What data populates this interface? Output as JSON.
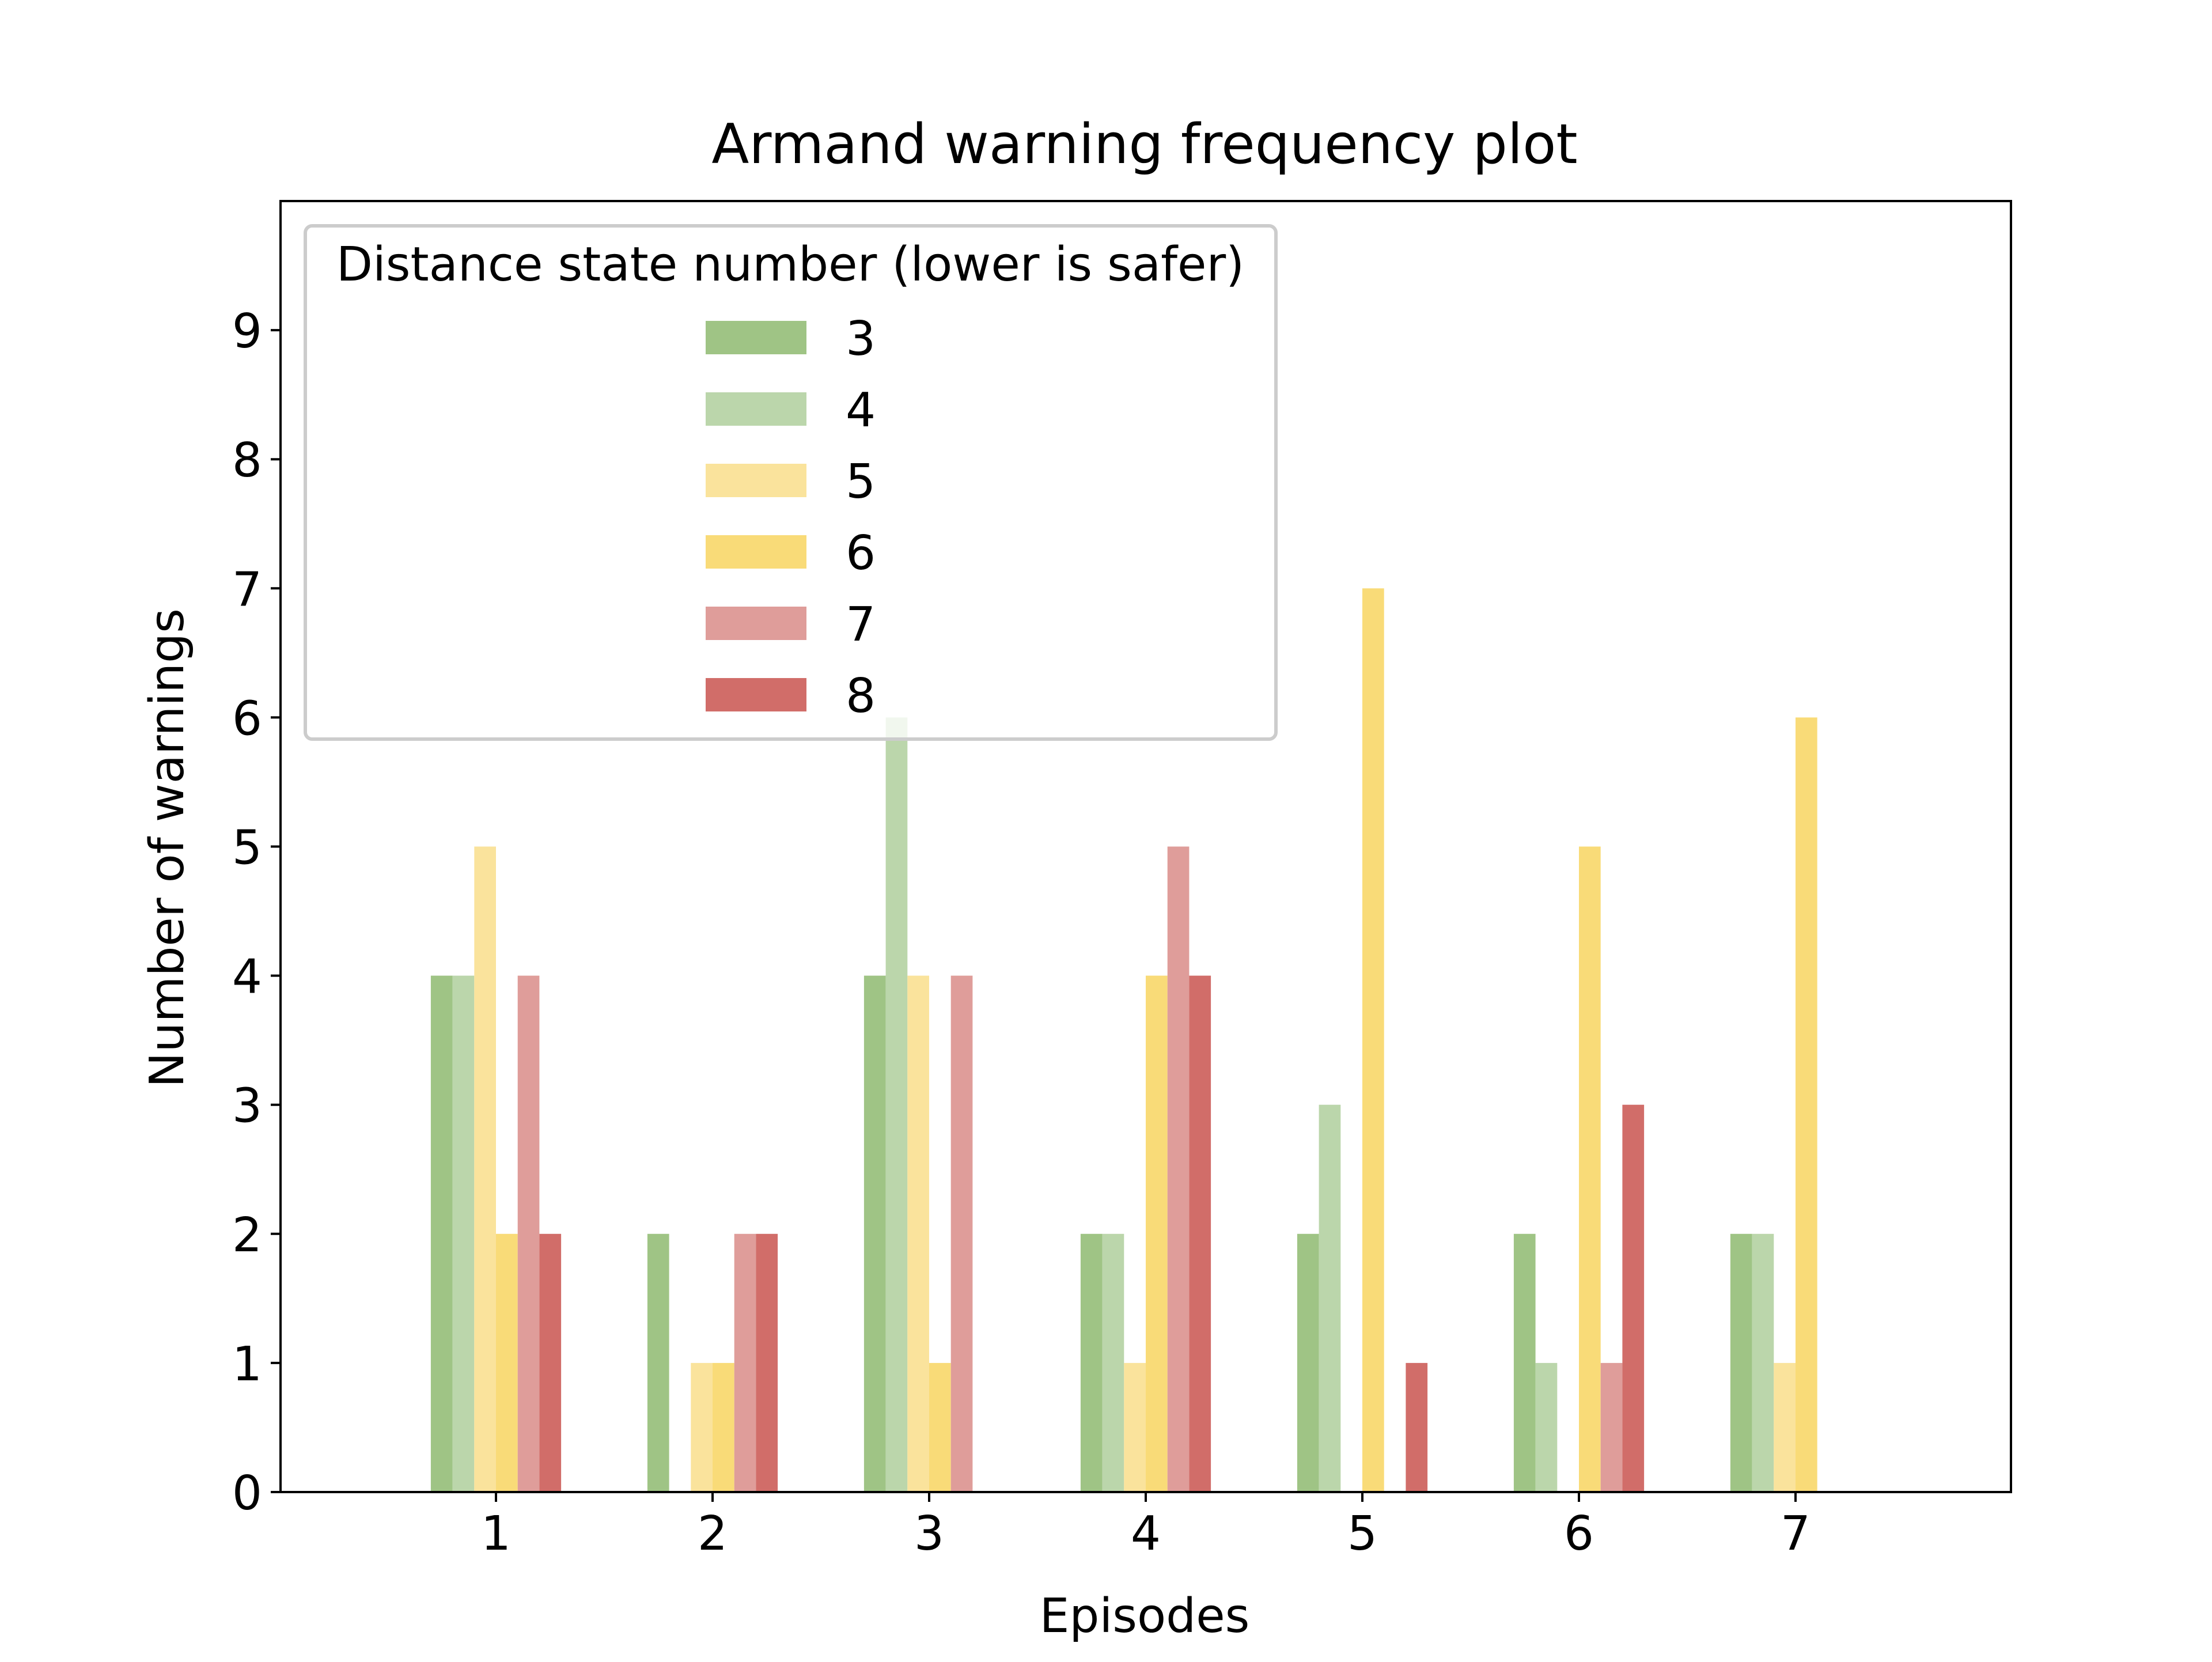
{
  "chart_data": {
    "type": "bar",
    "title": "Armand warning frequency plot",
    "xlabel": "Episodes",
    "ylabel": "Number of warnings",
    "categories": [
      "1",
      "2",
      "3",
      "4",
      "5",
      "6",
      "7"
    ],
    "ylim": [
      0,
      10
    ],
    "yticks": [
      "0",
      "1",
      "2",
      "3",
      "4",
      "5",
      "6",
      "7",
      "8",
      "9"
    ],
    "grid": false,
    "legend": {
      "title": "Distance state number (lower is safer)",
      "placement": "top-left"
    },
    "series": [
      {
        "name": "3",
        "color": "#9fc485",
        "values": [
          4,
          2,
          4,
          2,
          2,
          2,
          2
        ]
      },
      {
        "name": "4",
        "color": "#bbd6ab",
        "values": [
          4,
          0,
          6,
          2,
          3,
          1,
          2
        ]
      },
      {
        "name": "5",
        "color": "#fae39c",
        "values": [
          5,
          1,
          4,
          1,
          0,
          0,
          1
        ]
      },
      {
        "name": "6",
        "color": "#f9db78",
        "values": [
          2,
          1,
          1,
          4,
          7,
          5,
          6
        ]
      },
      {
        "name": "7",
        "color": "#df9d9a",
        "values": [
          4,
          2,
          4,
          5,
          0,
          1,
          0
        ]
      },
      {
        "name": "8",
        "color": "#d16d69",
        "values": [
          2,
          2,
          0,
          4,
          1,
          3,
          0
        ]
      }
    ]
  }
}
